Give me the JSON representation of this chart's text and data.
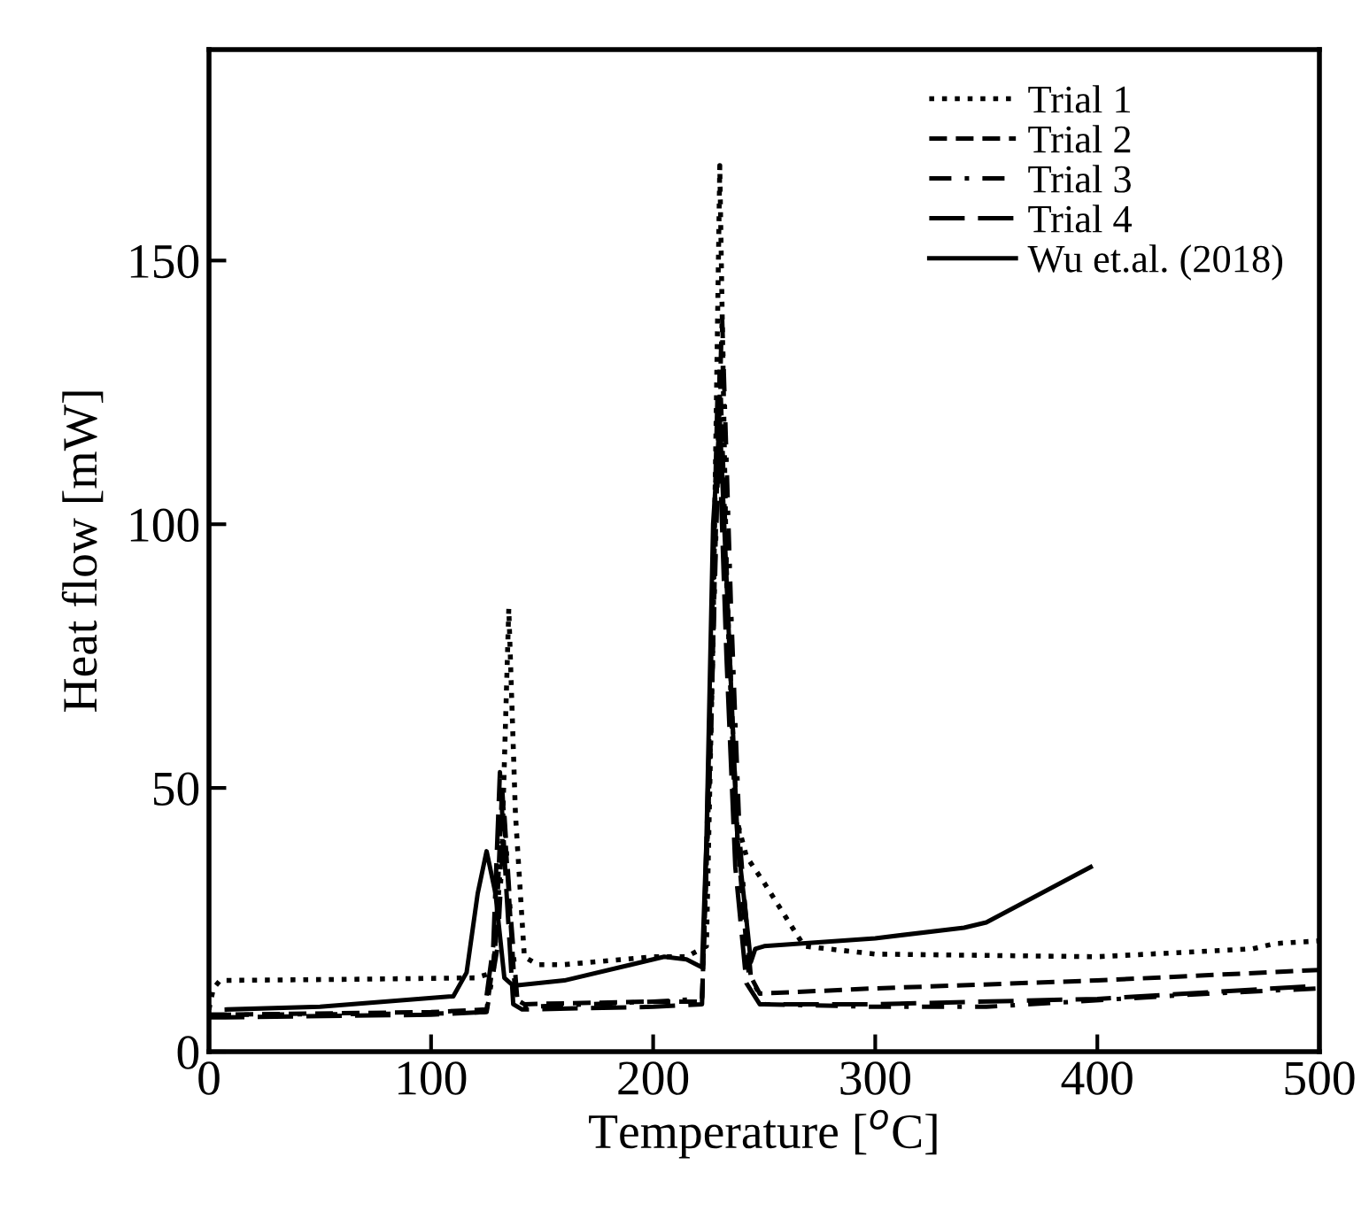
{
  "chart_data": {
    "type": "line",
    "xlabel": "Temperature [$^{o}$C]",
    "ylabel": "Heat flow [mW]",
    "xlim": [
      0,
      500
    ],
    "xticks": [
      0,
      100,
      200,
      300,
      400,
      500
    ],
    "ylim": [
      0,
      190
    ],
    "yticks": [
      0,
      50,
      100,
      150
    ],
    "grid": false,
    "legend": "top right",
    "series": [
      {
        "name": "Trial 1",
        "color": "#000000",
        "line_style": "dotted",
        "x": [
          0,
          2,
          5,
          60,
          120,
          128,
          132,
          135,
          138,
          142,
          148,
          160,
          200,
          215,
          224,
          227,
          230,
          233,
          237,
          242,
          250,
          268,
          300,
          400,
          470,
          480,
          500
        ],
        "values": [
          8,
          12,
          13.5,
          13.7,
          14,
          15,
          40,
          84,
          45,
          18,
          16.5,
          16.5,
          18,
          18,
          20,
          80,
          168,
          90,
          45,
          37,
          32,
          20,
          18.5,
          18,
          19.5,
          20.5,
          21
        ]
      },
      {
        "name": "Trial 2",
        "color": "#000000",
        "line_style": "dashed",
        "x": [
          0,
          5,
          100,
          125,
          129,
          132,
          135,
          138,
          142,
          200,
          222,
          226,
          230,
          234,
          238,
          243,
          248,
          300,
          400,
          500
        ],
        "values": [
          7,
          7,
          7.5,
          8,
          20,
          50,
          30,
          10,
          9,
          9.5,
          9.5,
          60,
          130,
          80,
          40,
          15,
          11,
          12,
          13.5,
          15.5
        ]
      },
      {
        "name": "Trial 3",
        "color": "#000000",
        "line_style": "dashdot",
        "x": [
          0,
          5,
          100,
          125,
          130,
          133,
          136,
          139,
          143,
          200,
          222,
          226,
          231,
          235,
          239,
          244,
          250,
          300,
          350,
          450,
          500
        ],
        "values": [
          7,
          7,
          7.2,
          7.5,
          20,
          45,
          25,
          9,
          8.5,
          9.5,
          10,
          60,
          140,
          85,
          40,
          14,
          9,
          8.5,
          8.5,
          11,
          12
        ]
      },
      {
        "name": "Trial 4",
        "color": "#000000",
        "line_style": "longdash",
        "x": [
          0,
          5,
          100,
          124,
          128,
          131,
          134,
          137,
          141,
          200,
          222,
          225,
          229,
          233,
          237,
          242,
          248,
          300,
          400,
          500
        ],
        "values": [
          6.5,
          6.5,
          7,
          7.5,
          20,
          53,
          30,
          9,
          8,
          8.5,
          9,
          55,
          125,
          75,
          35,
          13,
          9,
          9,
          10,
          12.5
        ]
      },
      {
        "name": "Wu et.al. (2018)",
        "color": "#000000",
        "line_style": "solid",
        "x": [
          8,
          50,
          110,
          116,
          121,
          125,
          129,
          133,
          137,
          160,
          190,
          205,
          215,
          222,
          224,
          227,
          230,
          234,
          238,
          242,
          244,
          246,
          250,
          300,
          340,
          350,
          397
        ],
        "values": [
          8,
          8.5,
          10.5,
          15,
          30,
          38,
          30,
          14,
          12.5,
          13.5,
          16.5,
          18,
          17.5,
          16,
          40,
          100,
          120,
          80,
          40,
          25,
          17,
          19.5,
          20,
          21.5,
          23.5,
          24.5,
          35
        ]
      }
    ]
  }
}
